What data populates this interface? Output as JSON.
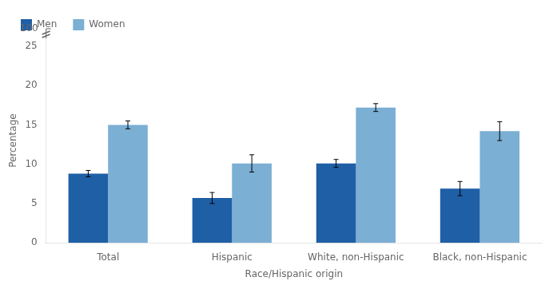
{
  "chart_data": {
    "type": "bar",
    "categories": [
      "Total",
      "Hispanic",
      "White, non-Hispanic",
      "Black, non-Hispanic"
    ],
    "series": [
      {
        "name": "Men",
        "color": "#1f5fa6",
        "values": [
          8.8,
          5.7,
          10.1,
          6.9
        ],
        "errors": [
          0.4,
          0.7,
          0.5,
          0.9
        ]
      },
      {
        "name": "Women",
        "color": "#7bafd4",
        "values": [
          15.0,
          10.1,
          17.2,
          14.2
        ],
        "errors": [
          0.5,
          1.1,
          0.5,
          1.2
        ]
      }
    ],
    "xlabel": "Race/Hispanic origin",
    "ylabel": "Percentage",
    "ylim": [
      0,
      26
    ],
    "yticks": [
      0,
      5,
      10,
      15,
      20,
      25
    ],
    "grid": false,
    "legend": "upper left",
    "annotations": [
      "100"
    ]
  }
}
